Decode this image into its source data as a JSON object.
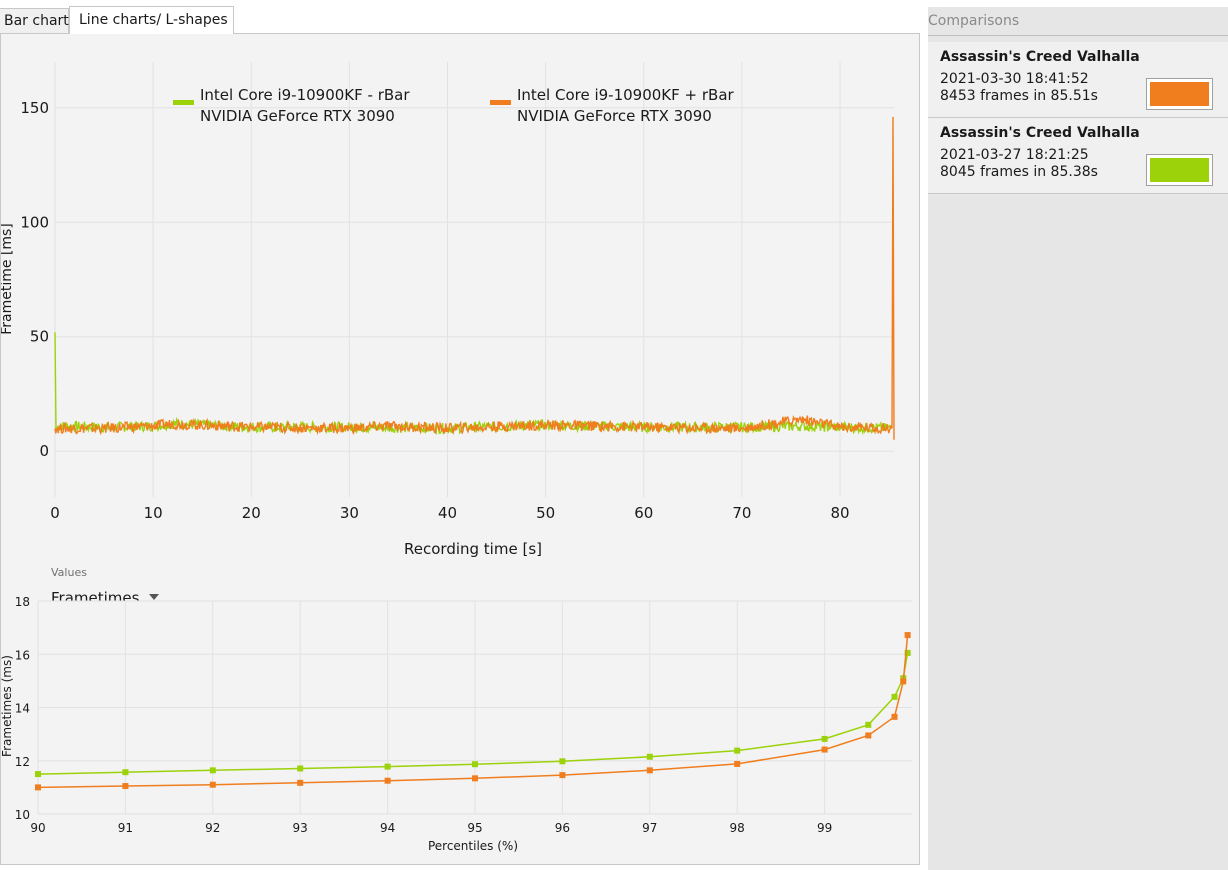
{
  "tabs": [
    {
      "label": "Bar charts"
    },
    {
      "label": "Line charts/ L-shapes"
    }
  ],
  "colors": {
    "orange": "#f07d1e",
    "green": "#9bd20a"
  },
  "values_control": {
    "caption": "Values",
    "selected": "Frametimes"
  },
  "sidebar": {
    "title": "Comparisons",
    "items": [
      {
        "game": "Assassin's Creed Valhalla",
        "datetime": "2021-03-30 18:41:52",
        "frames": "8453 frames in 85.51s",
        "color": "#f07d1e"
      },
      {
        "game": "Assassin's Creed Valhalla",
        "datetime": "2021-03-27 18:21:25",
        "frames": "8045 frames in 85.38s",
        "color": "#9bd20a"
      }
    ]
  },
  "chart_data": [
    {
      "type": "line",
      "xlabel": "Recording time [s]",
      "ylabel": "Frametime [ms]",
      "xlim": [
        0,
        85.5
      ],
      "ylim": [
        -20,
        170
      ],
      "xticks": [
        0,
        10,
        20,
        30,
        40,
        50,
        60,
        70,
        80
      ],
      "yticks": [
        0,
        50,
        100,
        150
      ],
      "legend_position": "top",
      "series": [
        {
          "name": "Intel Core i9-10900KF - rBar NVIDIA GeForce RTX 3090",
          "color": "#9bd20a",
          "x": [
            0,
            0.1,
            0.5,
            5,
            10,
            12,
            17,
            20,
            30,
            40,
            46,
            50,
            60,
            70,
            76,
            80,
            85.3
          ],
          "y": [
            52,
            10,
            11,
            10.5,
            11,
            12,
            11,
            10.5,
            10.5,
            10,
            11,
            11.5,
            10.5,
            10.5,
            11,
            10.5,
            10
          ]
        },
        {
          "name": "Intel Core i9-10900KF + rBar NVIDIA GeForce RTX 3090",
          "color": "#f07d1e",
          "x": [
            0,
            5,
            10,
            12,
            20,
            30,
            34,
            40,
            50,
            60,
            70,
            76,
            80,
            85.3,
            85.4,
            85.5
          ],
          "y": [
            10,
            10,
            11,
            12,
            10.5,
            10,
            11,
            10,
            11.5,
            10.5,
            10,
            14,
            10.5,
            10,
            146,
            5
          ]
        }
      ]
    },
    {
      "type": "line",
      "xlabel": "Percentiles (%)",
      "ylabel": "Frametimes (ms)",
      "xlim": [
        90,
        100
      ],
      "ylim": [
        10,
        18
      ],
      "xticks": [
        90,
        91,
        92,
        93,
        94,
        95,
        96,
        97,
        98,
        99
      ],
      "yticks": [
        10,
        12,
        14,
        16,
        18
      ],
      "series": [
        {
          "color": "#9bd20a",
          "x": [
            90,
            91,
            92,
            93,
            94,
            95,
            96,
            97,
            98,
            99,
            99.5,
            99.8,
            99.9,
            99.95
          ],
          "y": [
            11.5,
            11.57,
            11.64,
            11.71,
            11.78,
            11.87,
            11.98,
            12.15,
            12.38,
            12.82,
            13.35,
            14.4,
            15.1,
            16.05
          ]
        },
        {
          "color": "#f07d1e",
          "x": [
            90,
            91,
            92,
            93,
            94,
            95,
            96,
            97,
            98,
            99,
            99.5,
            99.8,
            99.9,
            99.95
          ],
          "y": [
            11.0,
            11.05,
            11.1,
            11.17,
            11.25,
            11.34,
            11.46,
            11.64,
            11.88,
            12.42,
            12.95,
            13.65,
            14.98,
            16.72
          ]
        }
      ]
    }
  ]
}
